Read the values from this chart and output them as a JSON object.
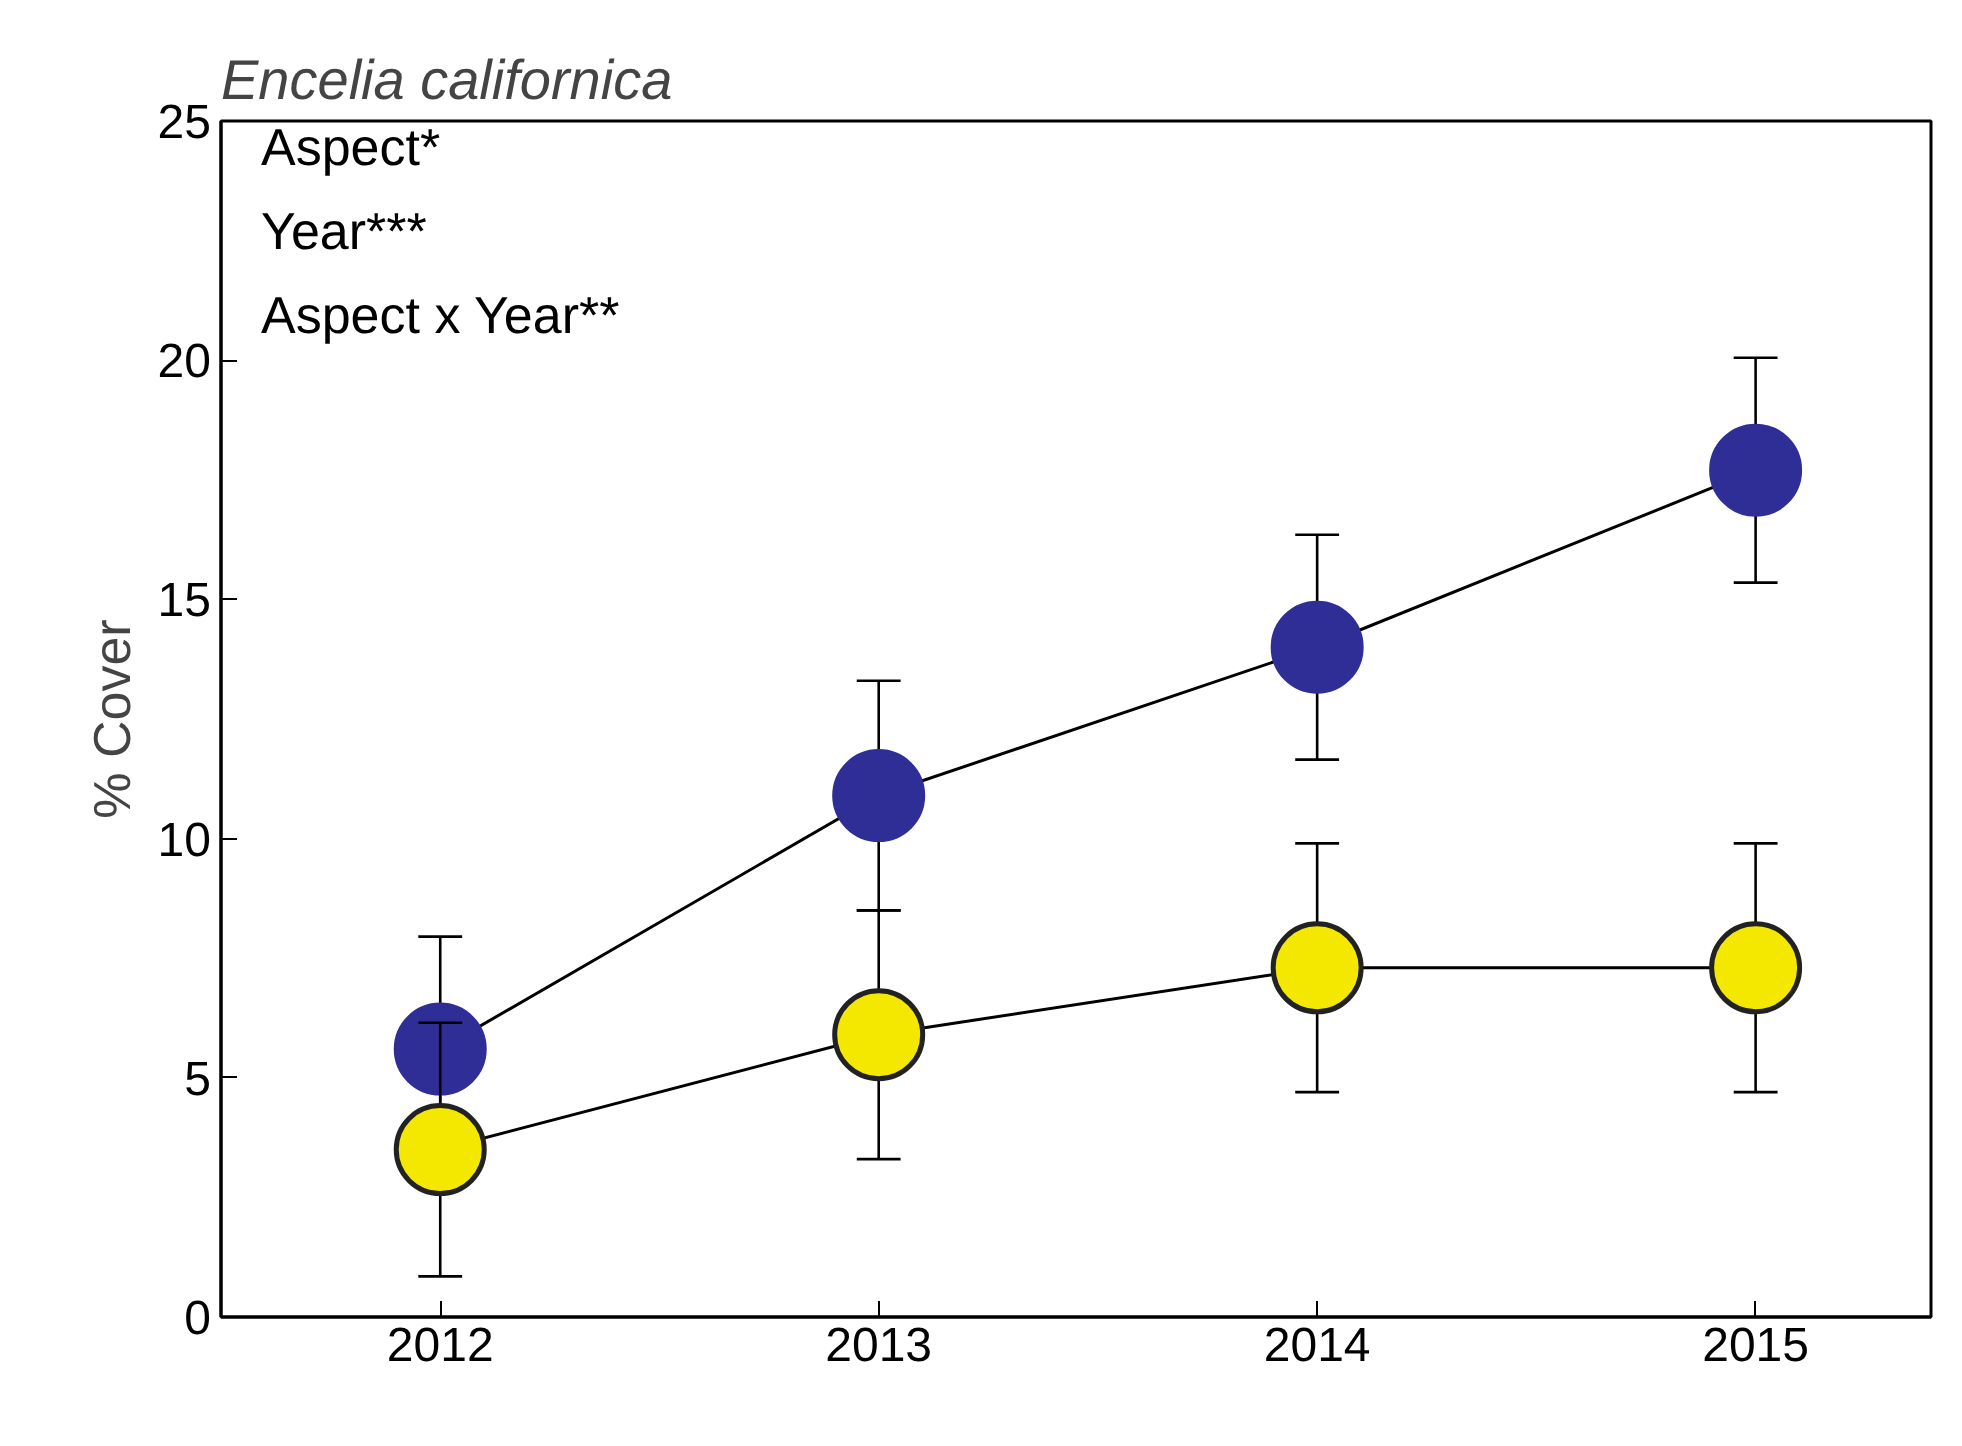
{
  "chart_data": {
    "type": "line",
    "title": "Encelia californica",
    "ylabel": "% Cover",
    "x": [
      2012,
      2013,
      2014,
      2015
    ],
    "series": [
      {
        "color": "#2e2e96",
        "values": [
          5.6,
          10.9,
          14.0,
          17.7
        ],
        "errors": [
          2.35,
          2.4,
          2.35,
          2.35
        ]
      },
      {
        "color": "#f5e800",
        "values": [
          3.5,
          5.9,
          7.3,
          7.3
        ],
        "errors": [
          2.65,
          2.6,
          2.6,
          2.6
        ]
      }
    ],
    "xlim": [
      2011.5,
      2015.4
    ],
    "ylim": [
      0,
      25
    ],
    "xticks": [
      2012,
      2013,
      2014,
      2015
    ],
    "yticks": [
      0,
      5,
      10,
      15,
      20,
      25
    ],
    "annotations": [
      "Aspect*",
      "Year***",
      "Aspect x Year**"
    ],
    "marker": "circle",
    "line_style": "solid",
    "grid": false
  }
}
